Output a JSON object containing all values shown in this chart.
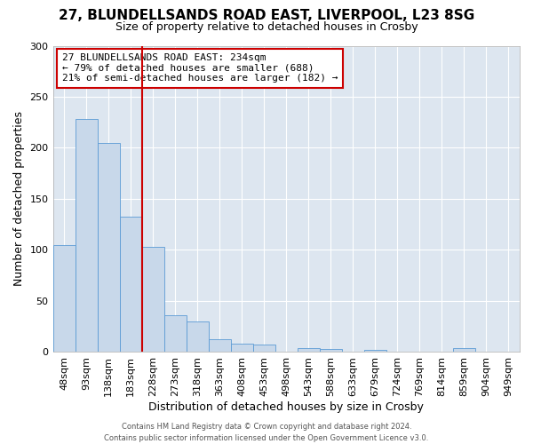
{
  "title_line1": "27, BLUNDELLSANDS ROAD EAST, LIVERPOOL, L23 8SG",
  "title_line2": "Size of property relative to detached houses in Crosby",
  "xlabel": "Distribution of detached houses by size in Crosby",
  "ylabel": "Number of detached properties",
  "categories": [
    "48sqm",
    "93sqm",
    "138sqm",
    "183sqm",
    "228sqm",
    "273sqm",
    "318sqm",
    "363sqm",
    "408sqm",
    "453sqm",
    "498sqm",
    "543sqm",
    "588sqm",
    "633sqm",
    "679sqm",
    "724sqm",
    "769sqm",
    "814sqm",
    "859sqm",
    "904sqm",
    "949sqm"
  ],
  "values": [
    105,
    228,
    205,
    133,
    103,
    36,
    30,
    13,
    8,
    7,
    0,
    4,
    3,
    0,
    2,
    0,
    0,
    0,
    4,
    0,
    0
  ],
  "bar_color": "#c8d8ea",
  "bar_edge_color": "#5b9bd5",
  "red_line_x": 3.5,
  "red_line_label": "27 BLUNDELLSANDS ROAD EAST: 234sqm",
  "annotation_line2": "← 79% of detached houses are smaller (688)",
  "annotation_line3": "21% of semi-detached houses are larger (182) →",
  "annotation_box_facecolor": "#ffffff",
  "annotation_box_edgecolor": "#cc0000",
  "red_line_color": "#cc0000",
  "footer_line1": "Contains HM Land Registry data © Crown copyright and database right 2024.",
  "footer_line2": "Contains public sector information licensed under the Open Government Licence v3.0.",
  "fig_facecolor": "#ffffff",
  "axes_facecolor": "#dde6f0",
  "grid_color": "#ffffff",
  "ylim": [
    0,
    300
  ],
  "bar_width": 1.0,
  "title1_fontsize": 11,
  "title2_fontsize": 9,
  "xlabel_fontsize": 9,
  "ylabel_fontsize": 9,
  "tick_fontsize": 8,
  "footer_fontsize": 6,
  "annot_fontsize": 8
}
